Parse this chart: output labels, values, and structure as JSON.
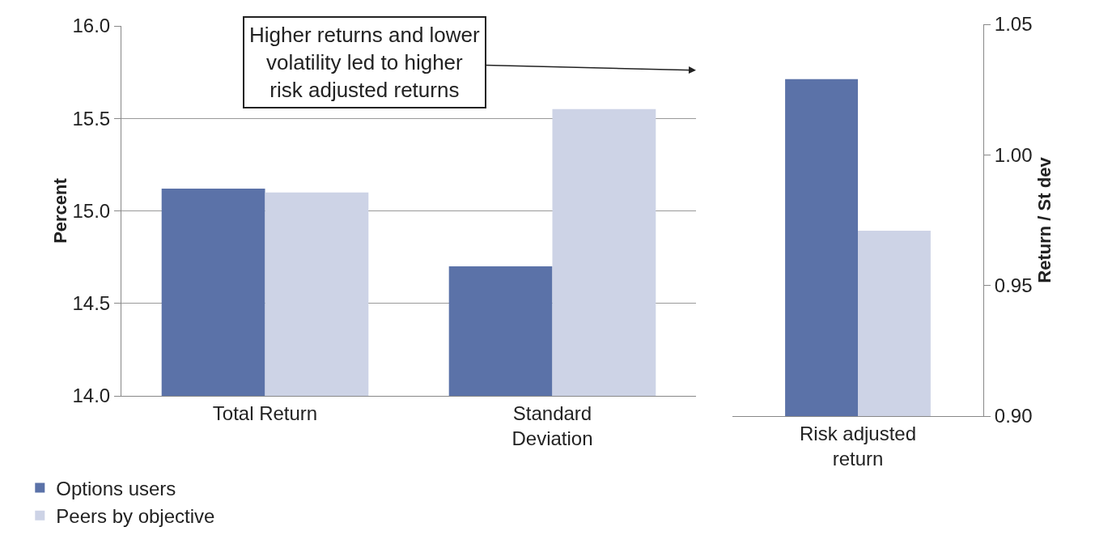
{
  "chart_data": [
    {
      "type": "bar",
      "categories": [
        "Total Return",
        "Standard Deviation"
      ],
      "ylabel": "Percent",
      "ylim": [
        14,
        16
      ],
      "yticks": [
        {
          "value": 14,
          "label": "14.0"
        },
        {
          "value": 14.5,
          "label": "14.5"
        },
        {
          "value": 15,
          "label": "15.0"
        },
        {
          "value": 15.5,
          "label": "15.5"
        },
        {
          "value": 16,
          "label": "16.0"
        }
      ],
      "grid": "y",
      "legend": "bottom left",
      "annotations": [
        "Higher returns and lower volatility led to higher risk adjusted returns"
      ],
      "series": [
        {
          "name": "Options users",
          "color": "#5b72a8",
          "values": [
            15.12,
            14.7
          ]
        },
        {
          "name": "Peers by objective",
          "color": "#cdd3e6",
          "values": [
            15.1,
            15.55
          ]
        }
      ]
    },
    {
      "type": "bar",
      "categories": [
        "Risk adjusted return"
      ],
      "y2label": "Return / St dev",
      "y2lim": [
        0.9,
        1.05
      ],
      "y2ticks": [
        {
          "value": 0.9,
          "label": "0.90"
        },
        {
          "value": 0.95,
          "label": "0.95"
        },
        {
          "value": 1.0,
          "label": "1.00"
        },
        {
          "value": 1.05,
          "label": "1.05"
        }
      ],
      "series": [
        {
          "color": "#5b72a8",
          "values": [
            1.029
          ],
          "axis": "y2"
        },
        {
          "color": "#cdd3e6",
          "values": [
            0.971
          ],
          "axis": "y2"
        }
      ]
    }
  ]
}
